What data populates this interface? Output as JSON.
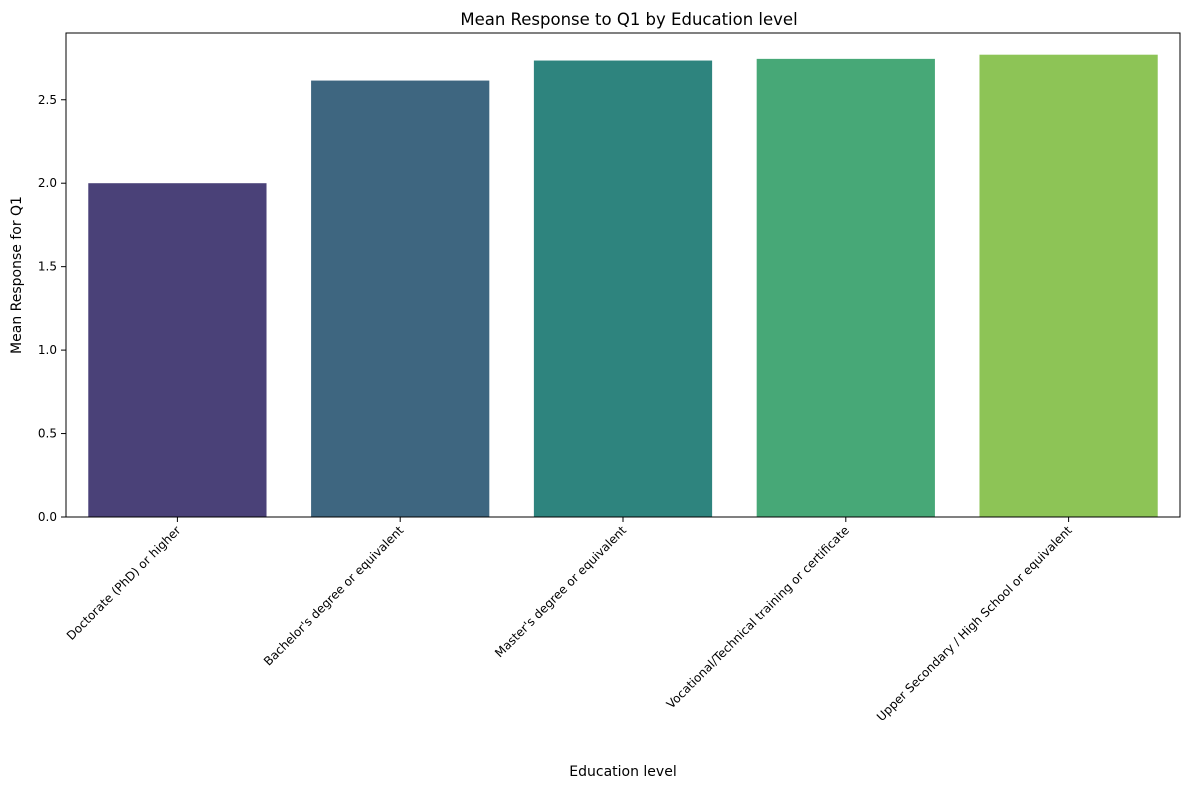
{
  "chart_data": {
    "type": "bar",
    "title": "Mean Response to Q1 by Education level",
    "xlabel": "Education level",
    "ylabel": "Mean Response for Q1",
    "categories": [
      "Doctorate (PhD) or higher",
      "Bachelor's degree or equivalent",
      "Master's degree or equivalent",
      "Vocational/Technical training or certificate",
      "Upper Secondary / High School or equivalent"
    ],
    "values": [
      2.0,
      2.615,
      2.735,
      2.745,
      2.77
    ],
    "colors": [
      "#4a4178",
      "#3e6680",
      "#2e847e",
      "#47a877",
      "#8dc456"
    ],
    "ylim": [
      0,
      2.9
    ],
    "yticks": [
      "0.0",
      "0.5",
      "1.0",
      "1.5",
      "2.0",
      "2.5"
    ],
    "grid": false
  }
}
